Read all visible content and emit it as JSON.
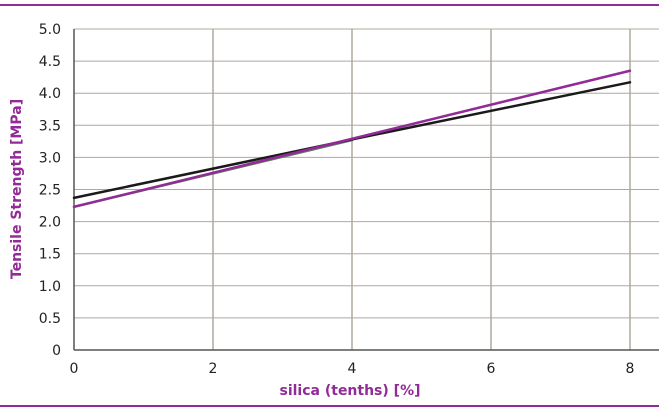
{
  "chart_data": {
    "type": "line",
    "title": "",
    "xlabel": "silica (tenths) [%]",
    "ylabel": "Tensile Strength [MPa]",
    "xlim": [
      0,
      8
    ],
    "ylim": [
      0,
      5.0
    ],
    "xticks": [
      0,
      2,
      4,
      6,
      8
    ],
    "yticks": [
      0,
      0.5,
      1.0,
      1.5,
      2.0,
      2.5,
      3.0,
      3.5,
      4.0,
      4.5,
      5.0
    ],
    "xtick_labels": [
      "0",
      "2",
      "4",
      "6",
      "8"
    ],
    "ytick_labels": [
      "0",
      "0.5",
      "1.0",
      "1.5",
      "2.0",
      "2.5",
      "3.0",
      "3.5",
      "4.0",
      "4.5",
      "5.0"
    ],
    "grid": true,
    "legend": "none",
    "series": [
      {
        "color": "#5f7a5e",
        "x": [
          0,
          4
        ],
        "y": [
          2.23,
          3.27
        ]
      },
      {
        "color": "#1a1a1a",
        "x": [
          0,
          4,
          8
        ],
        "y": [
          2.37,
          3.28,
          4.17
        ]
      },
      {
        "color": "#922a97",
        "x": [
          0,
          8
        ],
        "y": [
          2.23,
          4.35
        ]
      }
    ]
  },
  "colors": {
    "accent": "#922a97",
    "grid": "#b0a8a0",
    "axis": "#555555"
  }
}
